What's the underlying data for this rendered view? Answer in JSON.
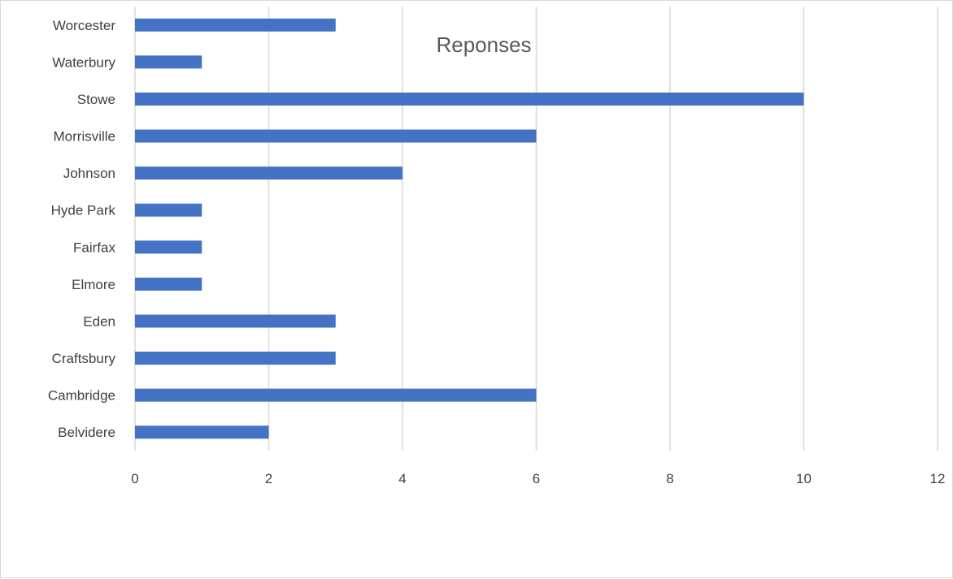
{
  "chart_data": {
    "type": "bar",
    "orientation": "horizontal",
    "title": "Reponses",
    "categories": [
      "Worcester",
      "Waterbury",
      "Stowe",
      "Morrisville",
      "Johnson",
      "Hyde Park",
      "Fairfax",
      "Elmore",
      "Eden",
      "Craftsbury",
      "Cambridge",
      "Belvidere"
    ],
    "values": [
      3,
      1,
      10,
      6,
      4,
      1,
      1,
      1,
      3,
      3,
      6,
      2
    ],
    "xlim": [
      0,
      12
    ],
    "xticks": [
      "0",
      "2",
      "4",
      "6",
      "8",
      "10",
      "12"
    ],
    "grid": true,
    "legend": "none",
    "bar_color": "#4472C4",
    "grid_color": "#d9d9d9"
  }
}
